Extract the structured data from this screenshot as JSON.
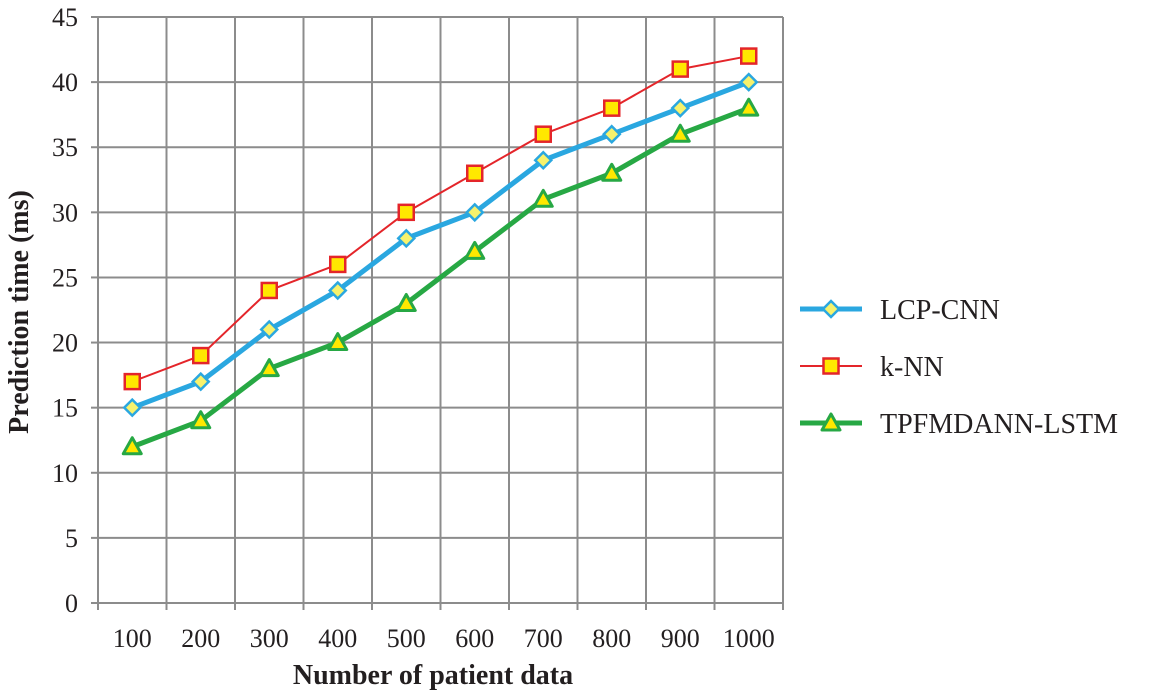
{
  "chart_data": {
    "type": "line",
    "title": "",
    "xlabel": "Number of patient data",
    "ylabel": "Prediction time (ms)",
    "categories": [
      "100",
      "200",
      "300",
      "400",
      "500",
      "600",
      "700",
      "800",
      "900",
      "1000"
    ],
    "ylim": [
      0,
      45
    ],
    "yticks": [
      0,
      5,
      10,
      15,
      20,
      25,
      30,
      35,
      40,
      45
    ],
    "grid": true,
    "legend_position": "right",
    "series": [
      {
        "name": "LCP-CNN",
        "marker": "diamond",
        "color": "#2aa7e0",
        "marker_fill": "#f7f26c",
        "values": [
          15,
          17,
          21,
          24,
          28,
          30,
          34,
          36,
          38,
          40
        ]
      },
      {
        "name": "k-NN",
        "marker": "square",
        "color": "#e4252a",
        "marker_fill": "#ffe800",
        "values": [
          17,
          19,
          24,
          26,
          30,
          33,
          36,
          38,
          41,
          42
        ]
      },
      {
        "name": "TPFMDANN-LSTM",
        "marker": "triangle",
        "color": "#27a844",
        "marker_fill": "#ffe800",
        "values": [
          12,
          14,
          18,
          20,
          23,
          27,
          31,
          33,
          36,
          38
        ]
      }
    ]
  }
}
